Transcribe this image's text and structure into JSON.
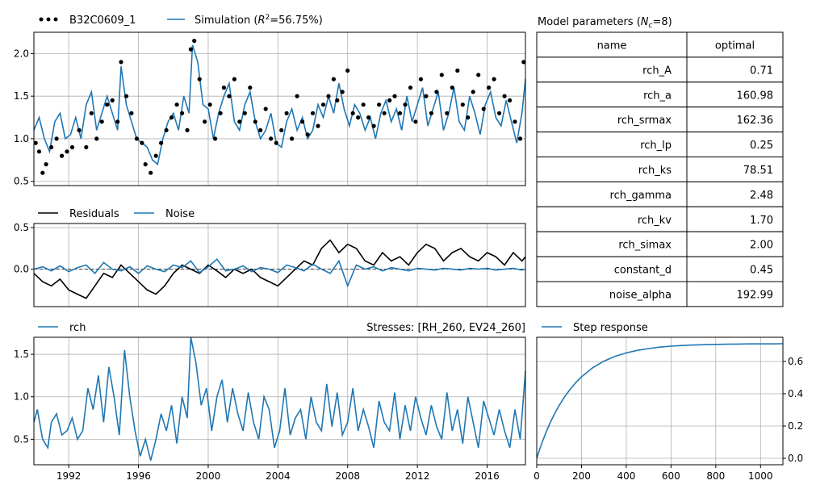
{
  "colors": {
    "observed": "#000000",
    "simulation": "#1f77b4",
    "residuals": "#000000",
    "noise": "#1f77b4",
    "rch": "#1f77b4",
    "step": "#1f77b4",
    "grid": "#b0b0b0"
  },
  "legend": {
    "observed": "B32C0609_1",
    "simulation_prefix": "Simulation (",
    "simulation_r2": "R",
    "simulation_sup": "2",
    "simulation_suffix": "=56.75%)",
    "residuals": "Residuals",
    "noise": "Noise",
    "rch": "rch",
    "stresses": "Stresses: [RH_260, EV24_260]",
    "step": "Step response"
  },
  "table": {
    "title_prefix": "Model parameters (",
    "title_n": "N",
    "title_sub": "c",
    "title_suffix": "=8)",
    "headers": [
      "name",
      "optimal"
    ],
    "rows": [
      [
        "rch_A",
        "0.71"
      ],
      [
        "rch_a",
        "160.98"
      ],
      [
        "rch_srmax",
        "162.36"
      ],
      [
        "rch_lp",
        "0.25"
      ],
      [
        "rch_ks",
        "78.51"
      ],
      [
        "rch_gamma",
        "2.48"
      ],
      [
        "rch_kv",
        "1.70"
      ],
      [
        "rch_simax",
        "2.00"
      ],
      [
        "constant_d",
        "0.45"
      ],
      [
        "noise_alpha",
        "192.99"
      ]
    ]
  },
  "chart_data": [
    {
      "type": "scatter",
      "title": "",
      "ylim": [
        0.45,
        2.25
      ],
      "yticks": [
        "2.0",
        "1.5",
        "1.0",
        "0.5"
      ],
      "xlim": [
        1990,
        2018.2
      ],
      "series": [
        {
          "name": "B32C0609_1",
          "kind": "points",
          "x": [
            1990.1,
            1990.3,
            1990.5,
            1990.7,
            1991.0,
            1991.3,
            1991.6,
            1991.9,
            1992.2,
            1992.6,
            1993.0,
            1993.3,
            1993.6,
            1993.9,
            1994.2,
            1994.5,
            1994.8,
            1995.0,
            1995.3,
            1995.6,
            1995.9,
            1996.2,
            1996.4,
            1996.7,
            1997.0,
            1997.3,
            1997.6,
            1997.9,
            1998.2,
            1998.5,
            1998.8,
            1999.0,
            1999.2,
            1999.5,
            1999.8,
            2000.1,
            2000.4,
            2000.7,
            2000.9,
            2001.2,
            2001.5,
            2001.8,
            2002.1,
            2002.4,
            2002.7,
            2003.0,
            2003.3,
            2003.6,
            2003.9,
            2004.2,
            2004.5,
            2004.8,
            2005.1,
            2005.4,
            2005.7,
            2006.0,
            2006.3,
            2006.6,
            2006.9,
            2007.2,
            2007.4,
            2007.7,
            2008.0,
            2008.3,
            2008.6,
            2008.9,
            2009.2,
            2009.5,
            2009.8,
            2010.1,
            2010.4,
            2010.7,
            2011.0,
            2011.3,
            2011.6,
            2011.9,
            2012.2,
            2012.5,
            2012.8,
            2013.1,
            2013.4,
            2013.7,
            2014.0,
            2014.3,
            2014.6,
            2014.9,
            2015.2,
            2015.5,
            2015.8,
            2016.1,
            2016.4,
            2016.7,
            2017.0,
            2017.3,
            2017.6,
            2017.9,
            2018.1
          ],
          "y": [
            0.95,
            0.85,
            0.6,
            0.7,
            0.9,
            1.0,
            0.8,
            0.85,
            0.9,
            1.1,
            0.9,
            1.3,
            1.0,
            1.2,
            1.4,
            1.45,
            1.2,
            1.9,
            1.5,
            1.3,
            1.0,
            0.95,
            0.7,
            0.6,
            0.8,
            0.95,
            1.1,
            1.25,
            1.4,
            1.3,
            1.1,
            2.05,
            2.15,
            1.7,
            1.2,
            1.4,
            1.0,
            1.3,
            1.6,
            1.5,
            1.7,
            1.2,
            1.3,
            1.6,
            1.2,
            1.1,
            1.35,
            1.0,
            0.95,
            1.1,
            1.3,
            1.0,
            1.5,
            1.2,
            1.05,
            1.3,
            1.15,
            1.4,
            1.5,
            1.7,
            1.45,
            1.55,
            1.8,
            1.3,
            1.25,
            1.4,
            1.25,
            1.15,
            1.4,
            1.3,
            1.45,
            1.5,
            1.3,
            1.4,
            1.6,
            1.2,
            1.7,
            1.5,
            1.3,
            1.55,
            1.75,
            1.3,
            1.6,
            1.8,
            1.4,
            1.25,
            1.55,
            1.75,
            1.35,
            1.6,
            1.7,
            1.3,
            1.5,
            1.45,
            1.2,
            1.0,
            1.9
          ]
        },
        {
          "name": "Simulation",
          "kind": "line",
          "x": [
            1990.0,
            1990.3,
            1990.6,
            1990.9,
            1991.2,
            1991.5,
            1991.8,
            1992.1,
            1992.4,
            1992.7,
            1993.0,
            1993.3,
            1993.6,
            1993.9,
            1994.2,
            1994.5,
            1994.8,
            1995.0,
            1995.3,
            1995.6,
            1995.9,
            1996.2,
            1996.5,
            1996.8,
            1997.1,
            1997.4,
            1997.7,
            1998.0,
            1998.3,
            1998.6,
            1998.9,
            1999.1,
            1999.4,
            1999.7,
            2000.0,
            2000.3,
            2000.6,
            2000.9,
            2001.2,
            2001.5,
            2001.8,
            2002.1,
            2002.4,
            2002.7,
            2003.0,
            2003.3,
            2003.6,
            2003.9,
            2004.2,
            2004.5,
            2004.8,
            2005.1,
            2005.4,
            2005.7,
            2006.0,
            2006.3,
            2006.6,
            2006.9,
            2007.2,
            2007.5,
            2007.8,
            2008.1,
            2008.4,
            2008.7,
            2009.0,
            2009.3,
            2009.6,
            2009.9,
            2010.2,
            2010.5,
            2010.8,
            2011.1,
            2011.4,
            2011.7,
            2012.0,
            2012.3,
            2012.6,
            2012.9,
            2013.2,
            2013.5,
            2013.8,
            2014.1,
            2014.4,
            2014.7,
            2015.0,
            2015.3,
            2015.6,
            2015.9,
            2016.2,
            2016.5,
            2016.8,
            2017.1,
            2017.4,
            2017.7,
            2018.0,
            2018.2
          ],
          "y": [
            1.1,
            1.25,
            1.0,
            0.85,
            1.2,
            1.3,
            1.0,
            1.05,
            1.25,
            1.0,
            1.4,
            1.55,
            1.1,
            1.3,
            1.5,
            1.3,
            1.1,
            1.85,
            1.4,
            1.2,
            1.0,
            0.95,
            0.9,
            0.75,
            0.7,
            1.0,
            1.2,
            1.3,
            1.1,
            1.5,
            1.3,
            2.1,
            1.9,
            1.4,
            1.35,
            1.0,
            1.3,
            1.5,
            1.65,
            1.2,
            1.1,
            1.4,
            1.55,
            1.2,
            1.0,
            1.1,
            1.3,
            0.95,
            0.9,
            1.2,
            1.35,
            1.1,
            1.25,
            1.0,
            1.1,
            1.4,
            1.25,
            1.5,
            1.3,
            1.65,
            1.35,
            1.15,
            1.4,
            1.3,
            1.1,
            1.25,
            1.0,
            1.3,
            1.45,
            1.2,
            1.35,
            1.1,
            1.5,
            1.2,
            1.4,
            1.6,
            1.15,
            1.35,
            1.55,
            1.1,
            1.3,
            1.6,
            1.2,
            1.1,
            1.5,
            1.3,
            1.05,
            1.4,
            1.55,
            1.25,
            1.15,
            1.45,
            1.2,
            0.95,
            1.3,
            1.7
          ]
        }
      ]
    },
    {
      "type": "line",
      "ylim": [
        -0.45,
        0.55
      ],
      "yticks": [
        "0.5",
        "0.0"
      ],
      "xlim": [
        1990,
        2018.2
      ],
      "series": [
        {
          "name": "Residuals",
          "x": [
            1990.0,
            1990.5,
            1991.0,
            1991.5,
            1992.0,
            1992.5,
            1993.0,
            1993.5,
            1994.0,
            1994.5,
            1995.0,
            1995.5,
            1996.0,
            1996.5,
            1997.0,
            1997.5,
            1998.0,
            1998.5,
            1999.0,
            1999.5,
            2000.0,
            2000.5,
            2001.0,
            2001.5,
            2002.0,
            2002.5,
            2003.0,
            2003.5,
            2004.0,
            2004.5,
            2005.0,
            2005.5,
            2006.0,
            2006.5,
            2007.0,
            2007.5,
            2008.0,
            2008.5,
            2009.0,
            2009.5,
            2010.0,
            2010.5,
            2011.0,
            2011.5,
            2012.0,
            2012.5,
            2013.0,
            2013.5,
            2014.0,
            2014.5,
            2015.0,
            2015.5,
            2016.0,
            2016.5,
            2017.0,
            2017.5,
            2018.0,
            2018.2
          ],
          "y": [
            -0.05,
            -0.15,
            -0.2,
            -0.12,
            -0.25,
            -0.3,
            -0.35,
            -0.2,
            -0.05,
            -0.1,
            0.05,
            -0.05,
            -0.15,
            -0.25,
            -0.3,
            -0.2,
            -0.05,
            0.05,
            0.0,
            -0.05,
            0.05,
            -0.02,
            -0.1,
            0.0,
            -0.05,
            0.0,
            -0.1,
            -0.15,
            -0.2,
            -0.1,
            0.0,
            0.1,
            0.05,
            0.25,
            0.35,
            0.2,
            0.3,
            0.25,
            0.1,
            0.05,
            0.2,
            0.1,
            0.15,
            0.05,
            0.2,
            0.3,
            0.25,
            0.1,
            0.2,
            0.25,
            0.15,
            0.1,
            0.2,
            0.15,
            0.05,
            0.2,
            0.1,
            0.15
          ]
        },
        {
          "name": "Noise",
          "x": [
            1990.0,
            1990.5,
            1991.0,
            1991.5,
            1992.0,
            1992.5,
            1993.0,
            1993.5,
            1994.0,
            1994.5,
            1995.0,
            1995.5,
            1996.0,
            1996.5,
            1997.0,
            1997.5,
            1998.0,
            1998.5,
            1999.0,
            1999.5,
            2000.0,
            2000.5,
            2001.0,
            2001.5,
            2002.0,
            2002.5,
            2003.0,
            2003.5,
            2004.0,
            2004.5,
            2005.0,
            2005.5,
            2006.0,
            2006.5,
            2007.0,
            2007.5,
            2008.0,
            2008.5,
            2009.0,
            2009.5,
            2010.0,
            2010.5,
            2011.0,
            2011.5,
            2012.0,
            2012.5,
            2013.0,
            2013.5,
            2014.0,
            2014.5,
            2015.0,
            2015.5,
            2016.0,
            2016.5,
            2017.0,
            2017.5,
            2018.0,
            2018.2
          ],
          "y": [
            0.0,
            0.03,
            -0.02,
            0.04,
            -0.03,
            0.02,
            0.05,
            -0.05,
            0.08,
            0.0,
            -0.02,
            0.03,
            -0.05,
            0.04,
            0.0,
            -0.03,
            0.05,
            0.02,
            0.1,
            -0.04,
            0.03,
            0.12,
            -0.02,
            0.0,
            0.04,
            -0.03,
            0.02,
            0.0,
            -0.04,
            0.05,
            0.02,
            -0.02,
            0.06,
            0.0,
            -0.05,
            0.1,
            -0.2,
            0.05,
            0.0,
            0.03,
            -0.02,
            0.02,
            0.0,
            -0.02,
            0.01,
            0.0,
            -0.01,
            0.01,
            0.0,
            -0.01,
            0.01,
            0.0,
            0.01,
            -0.01,
            0.0,
            0.01,
            -0.01,
            0.0
          ]
        }
      ]
    },
    {
      "type": "line",
      "ylim": [
        0.2,
        1.7
      ],
      "yticks": [
        "1.5",
        "1.0",
        "0.5"
      ],
      "xlim": [
        1990,
        2018.2
      ],
      "xticks": [
        "1992",
        "1996",
        "2000",
        "2004",
        "2008",
        "2012",
        "2016"
      ],
      "series": [
        {
          "name": "rch",
          "x": [
            1990.0,
            1990.2,
            1990.5,
            1990.8,
            1991.0,
            1991.3,
            1991.6,
            1991.9,
            1992.2,
            1992.5,
            1992.8,
            1993.1,
            1993.4,
            1993.7,
            1994.0,
            1994.3,
            1994.6,
            1994.9,
            1995.2,
            1995.5,
            1995.8,
            1996.1,
            1996.4,
            1996.7,
            1997.0,
            1997.3,
            1997.6,
            1997.9,
            1998.2,
            1998.5,
            1998.8,
            1999.0,
            1999.3,
            1999.6,
            1999.9,
            2000.2,
            2000.5,
            2000.8,
            2001.1,
            2001.4,
            2001.7,
            2002.0,
            2002.3,
            2002.6,
            2002.9,
            2003.2,
            2003.5,
            2003.8,
            2004.1,
            2004.4,
            2004.7,
            2005.0,
            2005.3,
            2005.6,
            2005.9,
            2006.2,
            2006.5,
            2006.8,
            2007.1,
            2007.4,
            2007.7,
            2008.0,
            2008.3,
            2008.6,
            2008.9,
            2009.2,
            2009.5,
            2009.8,
            2010.1,
            2010.4,
            2010.7,
            2011.0,
            2011.3,
            2011.6,
            2011.9,
            2012.2,
            2012.5,
            2012.8,
            2013.1,
            2013.4,
            2013.7,
            2014.0,
            2014.3,
            2014.6,
            2014.9,
            2015.2,
            2015.5,
            2015.8,
            2016.1,
            2016.4,
            2016.7,
            2017.0,
            2017.3,
            2017.6,
            2017.9,
            2018.2
          ],
          "y": [
            0.7,
            0.85,
            0.5,
            0.4,
            0.7,
            0.8,
            0.55,
            0.6,
            0.75,
            0.5,
            0.6,
            1.1,
            0.85,
            1.25,
            0.7,
            1.35,
            1.0,
            0.55,
            1.55,
            1.0,
            0.6,
            0.3,
            0.5,
            0.25,
            0.5,
            0.8,
            0.6,
            0.9,
            0.45,
            1.0,
            0.75,
            1.7,
            1.4,
            0.9,
            1.1,
            0.6,
            1.0,
            1.2,
            0.7,
            1.1,
            0.8,
            0.6,
            1.05,
            0.7,
            0.5,
            1.0,
            0.85,
            0.4,
            0.6,
            1.1,
            0.55,
            0.75,
            0.85,
            0.5,
            1.0,
            0.7,
            0.6,
            1.15,
            0.65,
            1.05,
            0.55,
            0.7,
            1.1,
            0.6,
            0.85,
            0.65,
            0.4,
            0.95,
            0.7,
            0.6,
            1.05,
            0.5,
            0.9,
            0.6,
            1.0,
            0.75,
            0.55,
            0.9,
            0.65,
            0.5,
            1.05,
            0.6,
            0.85,
            0.45,
            1.0,
            0.7,
            0.4,
            0.95,
            0.75,
            0.55,
            0.85,
            0.6,
            0.4,
            0.85,
            0.5,
            1.3
          ]
        }
      ]
    },
    {
      "type": "line",
      "title": "",
      "xlim": [
        0,
        1100
      ],
      "ylim": [
        -0.04,
        0.75
      ],
      "xticks": [
        "0",
        "200",
        "400",
        "600",
        "800",
        "1000"
      ],
      "yticks": [
        "0.6",
        "0.4",
        "0.2",
        "0.0"
      ],
      "series": [
        {
          "name": "Step response",
          "A": 0.71,
          "a": 160.98,
          "x": [
            0,
            20,
            40,
            60,
            80,
            100,
            125,
            150,
            175,
            200,
            250,
            300,
            350,
            400,
            450,
            500,
            550,
            600,
            650,
            700,
            750,
            800,
            850,
            900,
            950,
            1000,
            1050,
            1100
          ],
          "y": [
            0.0,
            0.083,
            0.156,
            0.22,
            0.277,
            0.327,
            0.382,
            0.429,
            0.47,
            0.505,
            0.561,
            0.602,
            0.632,
            0.653,
            0.669,
            0.68,
            0.689,
            0.695,
            0.699,
            0.702,
            0.704,
            0.706,
            0.707,
            0.708,
            0.709,
            0.709,
            0.709,
            0.71
          ]
        }
      ]
    }
  ]
}
